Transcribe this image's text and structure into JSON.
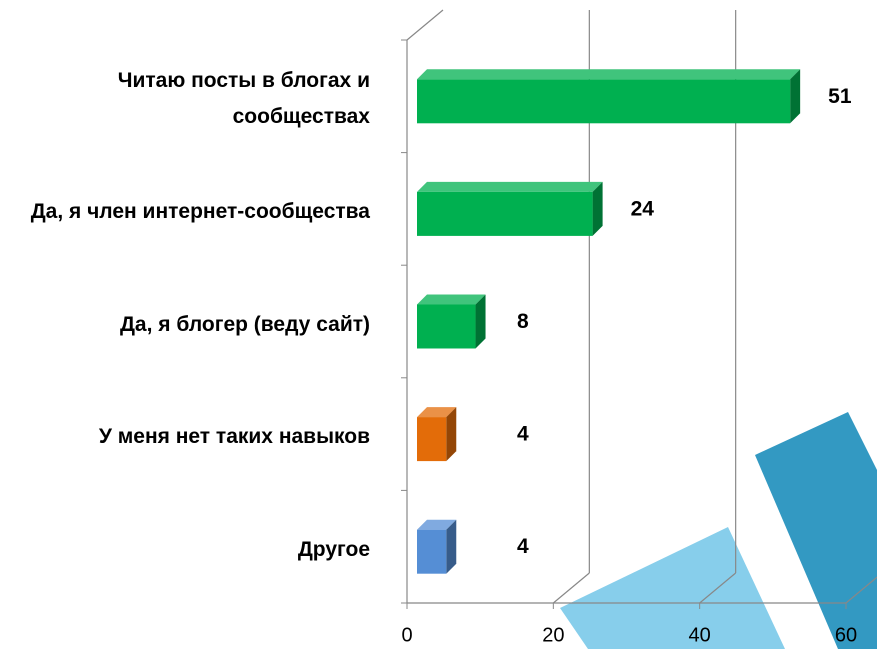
{
  "chart_data": {
    "type": "bar",
    "orientation": "horizontal",
    "categories": [
      "Читаю посты в блогах и сообществах",
      "Да, я член интернет-сообщества",
      "Да, я блогер (веду сайт)",
      "У меня нет таких навыков",
      "Другое"
    ],
    "values": [
      51,
      24,
      8,
      4,
      4
    ],
    "colors": [
      "#00b050",
      "#00b050",
      "#00b050",
      "#e36c09",
      "#558ed5"
    ],
    "xlim": [
      0,
      60
    ],
    "xticks": [
      0,
      20,
      40,
      60
    ],
    "grid": true
  }
}
